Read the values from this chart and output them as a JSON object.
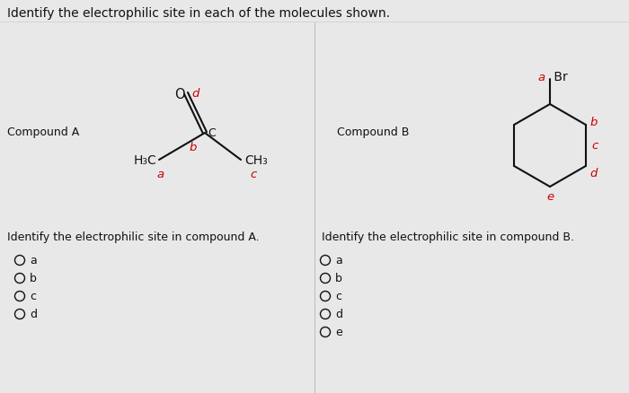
{
  "title": "Identify the electrophilic site in each of the molecules shown.",
  "title_fontsize": 10.5,
  "background_color": "#e8e8e8",
  "label_color_red": "#cc0000",
  "label_color_black": "#111111",
  "compound_a_label": "Compound A",
  "compound_b_label": "Compound B",
  "question_a": "Identify the electrophilic site in compound A.",
  "question_b": "Identify the electrophilic site in compound B.",
  "choices_a": [
    "a",
    "b",
    "c",
    "d"
  ],
  "choices_b": [
    "a",
    "b",
    "c",
    "d",
    "e"
  ],
  "figwidth": 7.0,
  "figheight": 4.38,
  "dpi": 100
}
